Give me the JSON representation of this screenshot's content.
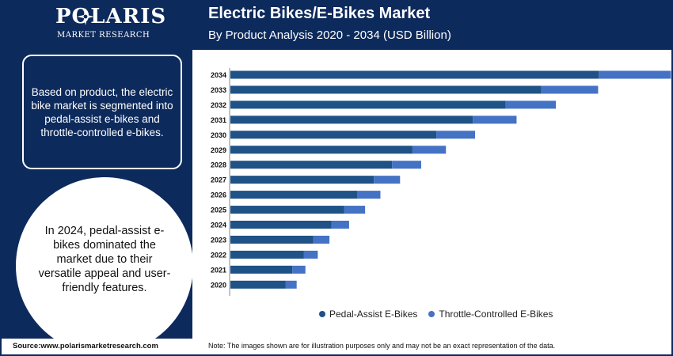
{
  "brand": {
    "name": "POLARIS",
    "sub": "MARKET RESEARCH"
  },
  "header": {
    "title": "Electric Bikes/E-Bikes Market",
    "subtitle": "By Product Analysis 2020 - 2034 (USD Billion)"
  },
  "left_panel": {
    "info_text": "Based on product, the electric bike market is segmented into pedal-assist e-bikes and throttle-controlled e-bikes.",
    "circle_text": "In 2024, pedal-assist e-bikes dominated the market due to their versatile appeal and user-friendly features."
  },
  "colors": {
    "navy": "#0d2a5c",
    "pedal": "#1f5286",
    "throttle": "#4472c4"
  },
  "chart_data": {
    "type": "bar",
    "orientation": "horizontal",
    "stacked": true,
    "categories": [
      "2034",
      "2033",
      "2032",
      "2031",
      "2030",
      "2029",
      "2028",
      "2027",
      "2026",
      "2025",
      "2024",
      "2023",
      "2022",
      "2021",
      "2020"
    ],
    "series": [
      {
        "name": "Pedal-Assist E-Bikes",
        "values": [
          50.6,
          42.7,
          37.8,
          33.3,
          28.3,
          25.0,
          22.2,
          19.7,
          17.4,
          15.6,
          13.9,
          11.4,
          10.1,
          8.5,
          7.6
        ]
      },
      {
        "name": "Throttle-Controlled E-Bikes",
        "values": [
          9.9,
          7.8,
          6.9,
          6.0,
          5.3,
          4.6,
          4.0,
          3.6,
          3.2,
          2.9,
          2.4,
          2.2,
          1.9,
          1.8,
          1.5
        ]
      }
    ],
    "xlim": [
      0,
      61
    ],
    "grid": false,
    "legend_position": "bottom"
  },
  "footer": {
    "source": "Source:www.polarismarketresearch.com",
    "note": "Note: The images shown are for illustration purposes only and may not be an exact representation of the data."
  }
}
